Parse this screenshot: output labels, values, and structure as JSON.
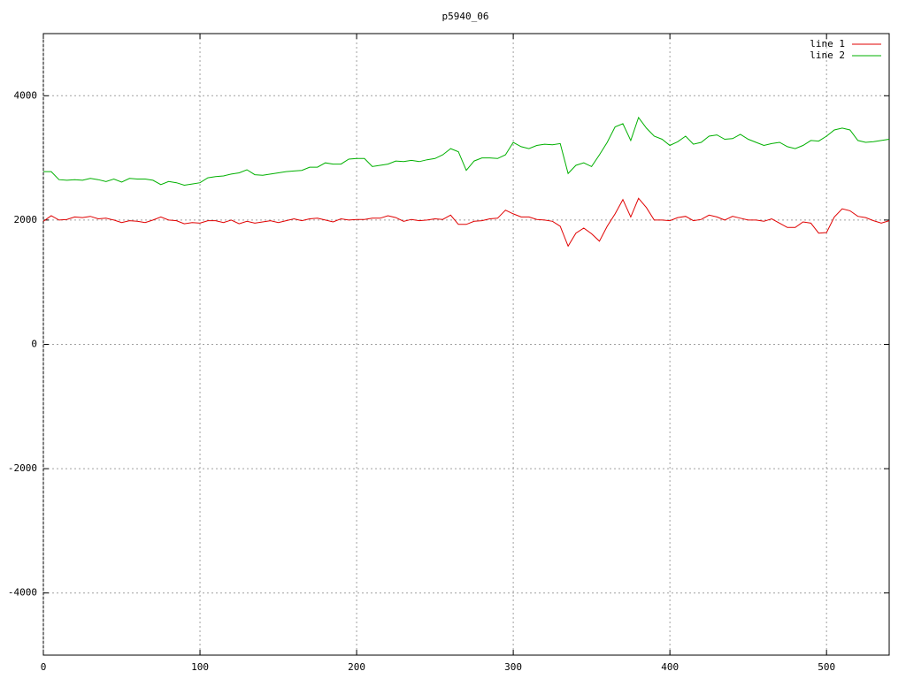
{
  "chart_data": {
    "type": "line",
    "title": "p5940_06",
    "x": [
      0,
      5,
      10,
      15,
      20,
      25,
      30,
      35,
      40,
      45,
      50,
      55,
      60,
      65,
      70,
      75,
      80,
      85,
      90,
      95,
      100,
      105,
      110,
      115,
      120,
      125,
      130,
      135,
      140,
      145,
      150,
      155,
      160,
      165,
      170,
      175,
      180,
      185,
      190,
      195,
      200,
      205,
      210,
      215,
      220,
      225,
      230,
      235,
      240,
      245,
      250,
      255,
      260,
      265,
      270,
      275,
      280,
      285,
      290,
      295,
      300,
      305,
      310,
      315,
      320,
      325,
      330,
      335,
      340,
      345,
      350,
      355,
      360,
      365,
      370,
      375,
      380,
      385,
      390,
      395,
      400,
      405,
      410,
      415,
      420,
      425,
      430,
      435,
      440,
      445,
      450,
      455,
      460,
      465,
      470,
      475,
      480,
      485,
      490,
      495,
      500,
      505,
      510,
      515,
      520,
      525,
      530,
      535,
      540
    ],
    "series": [
      {
        "name": "line 1",
        "color": "#e00000",
        "values": [
          1980,
          2070,
          2000,
          2010,
          2050,
          2040,
          2060,
          2020,
          2030,
          2000,
          1960,
          1990,
          1980,
          1960,
          2000,
          2050,
          2000,
          1990,
          1940,
          1960,
          1950,
          1990,
          1990,
          1960,
          2000,
          1940,
          1980,
          1950,
          1970,
          1990,
          1960,
          1990,
          2020,
          1990,
          2020,
          2030,
          2000,
          1970,
          2020,
          2000,
          2010,
          2010,
          2030,
          2030,
          2070,
          2040,
          1980,
          2010,
          1990,
          2000,
          2020,
          2010,
          2080,
          1930,
          1930,
          1980,
          1990,
          2020,
          2030,
          2160,
          2100,
          2050,
          2050,
          2010,
          2000,
          1980,
          1900,
          1580,
          1790,
          1870,
          1780,
          1660,
          1900,
          2100,
          2330,
          2050,
          2350,
          2200,
          2000,
          2000,
          1990,
          2040,
          2060,
          1990,
          2010,
          2080,
          2050,
          2000,
          2060,
          2030,
          2000,
          2000,
          1980,
          2020,
          1950,
          1880,
          1880,
          1970,
          1950,
          1790,
          1800,
          2050,
          2180,
          2150,
          2060,
          2040,
          1990,
          1950,
          1990
        ]
      },
      {
        "name": "line 2",
        "color": "#00b000",
        "values": [
          2780,
          2780,
          2650,
          2640,
          2650,
          2640,
          2670,
          2650,
          2620,
          2660,
          2610,
          2670,
          2660,
          2660,
          2640,
          2570,
          2620,
          2600,
          2560,
          2580,
          2600,
          2680,
          2700,
          2710,
          2740,
          2760,
          2810,
          2730,
          2720,
          2740,
          2760,
          2780,
          2790,
          2800,
          2850,
          2850,
          2920,
          2900,
          2900,
          2980,
          2990,
          2990,
          2860,
          2880,
          2900,
          2950,
          2940,
          2960,
          2940,
          2970,
          2990,
          3050,
          3150,
          3100,
          2800,
          2950,
          3000,
          3000,
          2990,
          3050,
          3250,
          3180,
          3150,
          3200,
          3220,
          3210,
          3230,
          2750,
          2880,
          2920,
          2860,
          3050,
          3250,
          3500,
          3550,
          3280,
          3650,
          3480,
          3350,
          3300,
          3200,
          3260,
          3350,
          3220,
          3250,
          3350,
          3370,
          3300,
          3310,
          3380,
          3300,
          3250,
          3200,
          3230,
          3250,
          3180,
          3150,
          3200,
          3280,
          3270,
          3350,
          3450,
          3480,
          3450,
          3280,
          3250,
          3260,
          3280,
          3300
        ]
      }
    ],
    "xlim": [
      0,
      540
    ],
    "xticks": [
      0,
      100,
      200,
      300,
      400,
      500
    ],
    "ylim": [
      -5000,
      5000
    ],
    "yticks": [
      -4000,
      -2000,
      0,
      2000,
      4000
    ],
    "grid": true,
    "legend": "top-right"
  }
}
